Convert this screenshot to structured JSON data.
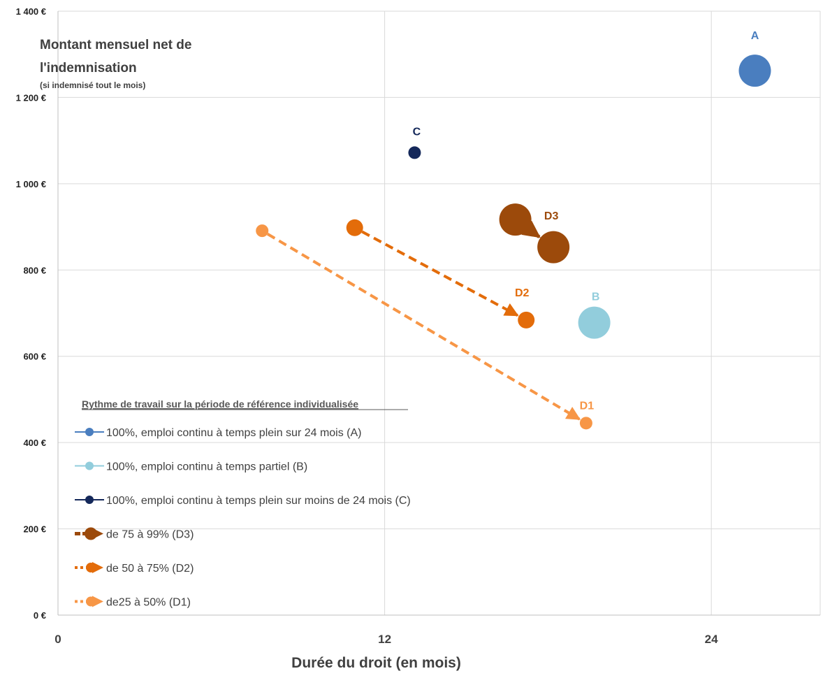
{
  "chart_data": {
    "type": "scatter",
    "title": "",
    "xlabel": "Durée du droit (en mois)",
    "ylabel": [
      "Montant  mensuel net de",
      "l'indemnisation",
      "(si indemnisé tout le mois)"
    ],
    "xlim": [
      0,
      28
    ],
    "ylim": [
      0,
      1400
    ],
    "x_ticks": [
      0,
      12,
      24
    ],
    "x_tick_labels": [
      "0",
      "12",
      "24"
    ],
    "y_ticks": [
      0,
      200,
      400,
      600,
      800,
      1000,
      1200,
      1400
    ],
    "y_tick_labels": [
      "0 €",
      "200 €",
      "400 €",
      "600 €",
      "800 €",
      "1 000 €",
      "1 200 €",
      "1 400 €"
    ],
    "grid": true,
    "legend_title": "Rythme de travail sur la période de référence individualisée",
    "legend_position": "bottom-left",
    "series": [
      {
        "name": "100%, emploi continu à temps plein sur 24 mois (A)",
        "label": "A",
        "kind": "point",
        "color": "#4a7ebf",
        "size": "large",
        "points": [
          {
            "x": 25.6,
            "y": 1262
          }
        ]
      },
      {
        "name": "100%, emploi continu à temps partiel (B)",
        "label": "B",
        "kind": "point",
        "color": "#92cddc",
        "size": "large",
        "points": [
          {
            "x": 19.7,
            "y": 678
          }
        ]
      },
      {
        "name": "100%, emploi continu à temps plein sur moins de 24 mois (C)",
        "label": "C",
        "kind": "point",
        "color": "#14285a",
        "size": "small",
        "points": [
          {
            "x": 13.1,
            "y": 1072
          }
        ]
      },
      {
        "name": "de 75 à 99% (D3)",
        "label": "D3",
        "kind": "arrow",
        "color": "#9c4a0b",
        "size": "large",
        "points": [
          {
            "x": 16.8,
            "y": 917
          },
          {
            "x": 18.2,
            "y": 853
          }
        ]
      },
      {
        "name": "de 50 à 75% (D2)",
        "label": "D2",
        "kind": "arrow",
        "color": "#e36c0a",
        "size": "medium",
        "points": [
          {
            "x": 10.9,
            "y": 898
          },
          {
            "x": 17.2,
            "y": 684
          }
        ]
      },
      {
        "name": "de25 à 50% (D1)",
        "label": "D1",
        "kind": "arrow",
        "color": "#f79646",
        "size": "small",
        "points": [
          {
            "x": 7.5,
            "y": 891
          },
          {
            "x": 19.4,
            "y": 445
          }
        ]
      }
    ]
  }
}
